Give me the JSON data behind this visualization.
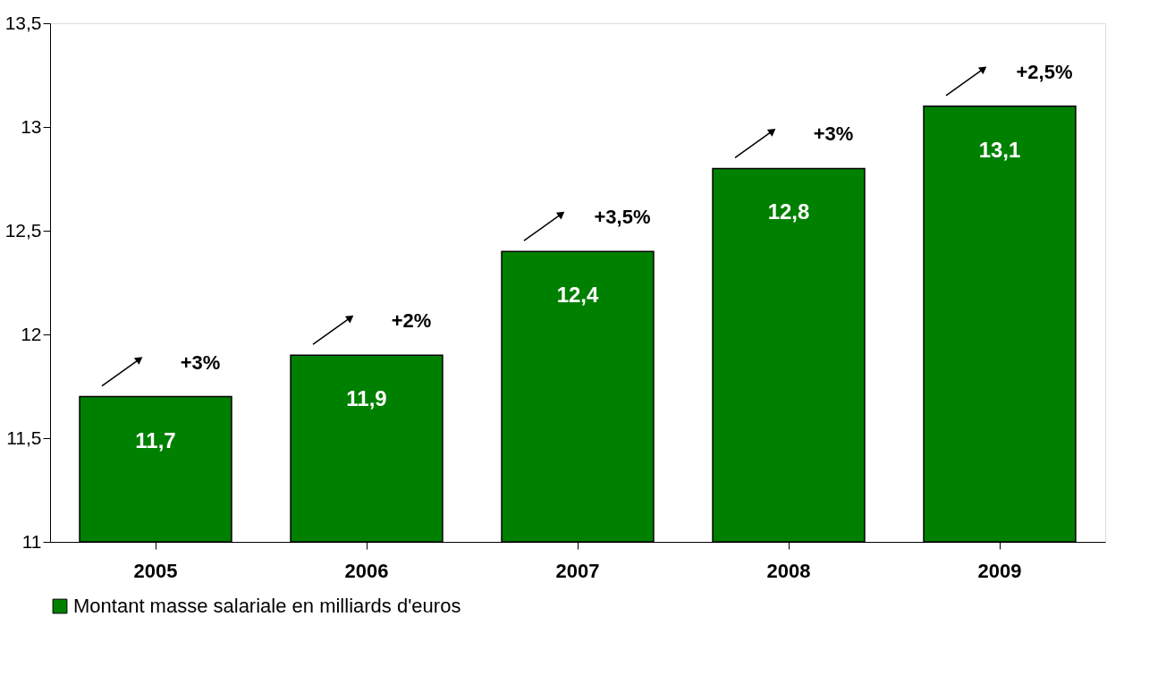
{
  "chart_data": {
    "type": "bar",
    "categories": [
      "2005",
      "2006",
      "2007",
      "2008",
      "2009"
    ],
    "series": [
      {
        "name": "Montant masse salariale en milliards d'euros",
        "color": "#008000",
        "values": [
          11.7,
          11.9,
          12.4,
          12.8,
          13.1
        ],
        "value_labels": [
          "11,7",
          "11,9",
          "12,4",
          "12,8",
          "13,1"
        ]
      }
    ],
    "ylim": [
      11,
      13.5
    ],
    "yticks": [
      11,
      {
        "value": 11.5,
        "label": "11,5"
      },
      12,
      {
        "value": 12.5,
        "label": "12,5"
      },
      13,
      {
        "value": 13.5,
        "label": "13,5"
      }
    ],
    "annotations": [
      "+3%",
      "+2%",
      "+3,5%",
      "+3%",
      "+2,5%"
    ],
    "grid": false,
    "legend": "bottom"
  }
}
